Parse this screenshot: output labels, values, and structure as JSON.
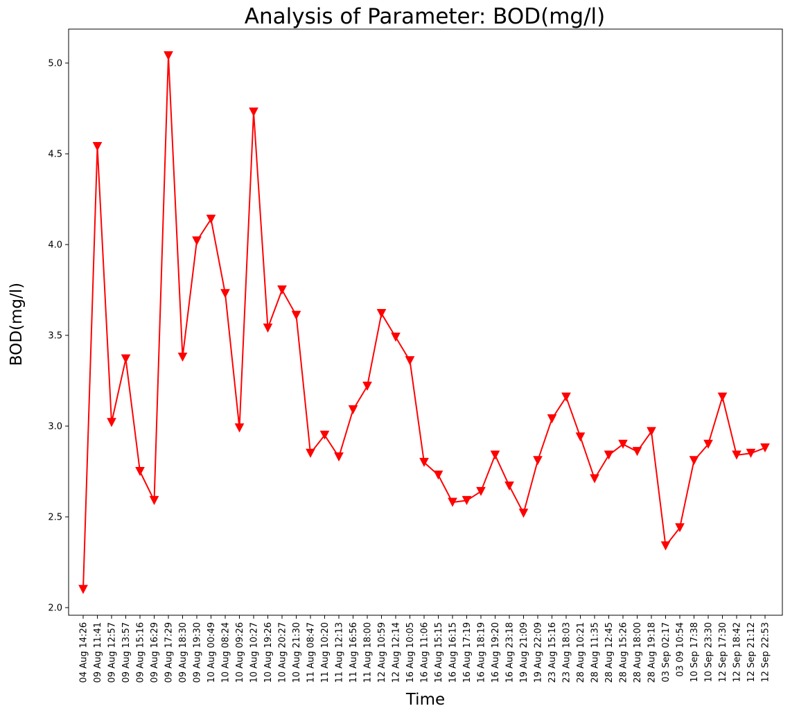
{
  "chart_data": {
    "type": "line",
    "title": "Analysis of Parameter: BOD(mg/l)",
    "xlabel": "Time",
    "ylabel": "BOD(mg/l)",
    "ylim": [
      1.95,
      5.19
    ],
    "yticks": [
      "2.0",
      "2.5",
      "3.0",
      "3.5",
      "4.0",
      "4.5",
      "5.0"
    ],
    "grid": false,
    "legend": "none",
    "marker": "downward triangle",
    "color": "#ff0000",
    "categories": [
      "04 Aug 14:26",
      "09 Aug 11:41",
      "09 Aug 12:57",
      "09 Aug 13:57",
      "09 Aug 15:16",
      "09 Aug 16:29",
      "09 Aug 17:29",
      "09 Aug 18:30",
      "09 Aug 19:30",
      "10 Aug 00:49",
      "10 Aug 08:24",
      "10 Aug 09:26",
      "10 Aug 10:27",
      "10 Aug 19:26",
      "10 Aug 20:27",
      "10 Aug 21:30",
      "11 Aug 08:47",
      "11 Aug 10:20",
      "11 Aug 12:13",
      "11 Aug 16:56",
      "11 Aug 18:00",
      "12 Aug 10:59",
      "12 Aug 12:14",
      "16 Aug 10:05",
      "16 Aug 11:06",
      "16 Aug 15:15",
      "16 Aug 16:15",
      "16 Aug 17:19",
      "16 Aug 18:19",
      "16 Aug 19:20",
      "16 Aug 23:18",
      "19 Aug 21:09",
      "19 Aug 22:09",
      "23 Aug 15:16",
      "23 Aug 18:03",
      "28 Aug 10:21",
      "28 Aug 11:35",
      "28 Aug 12:45",
      "28 Aug 15:26",
      "28 Aug 18:00",
      "28 Aug 19:18",
      "03 Sep 02:17",
      "03 09 10:54",
      "10 Sep 17:38",
      "10 Sep 23:30",
      "12 Sep 17:30",
      "12 Sep 18:42",
      "12 Sep 21:12",
      "12 Sep 22:53"
    ],
    "series": [
      {
        "values": [
          2.1,
          4.54,
          3.02,
          3.37,
          2.75,
          2.59,
          5.04,
          3.38,
          4.02,
          4.14,
          3.73,
          2.99,
          4.73,
          3.54,
          3.75,
          3.61,
          2.85,
          2.95,
          2.83,
          3.09,
          3.22,
          3.62,
          3.49,
          3.36,
          2.8,
          2.73,
          2.58,
          2.59,
          2.64,
          2.84,
          2.67,
          2.52,
          2.81,
          3.04,
          3.16,
          2.94,
          2.71,
          2.84,
          2.9,
          2.86,
          2.97,
          2.34,
          2.44,
          2.81,
          2.9,
          3.16,
          2.84,
          2.85,
          2.88
        ]
      }
    ]
  }
}
